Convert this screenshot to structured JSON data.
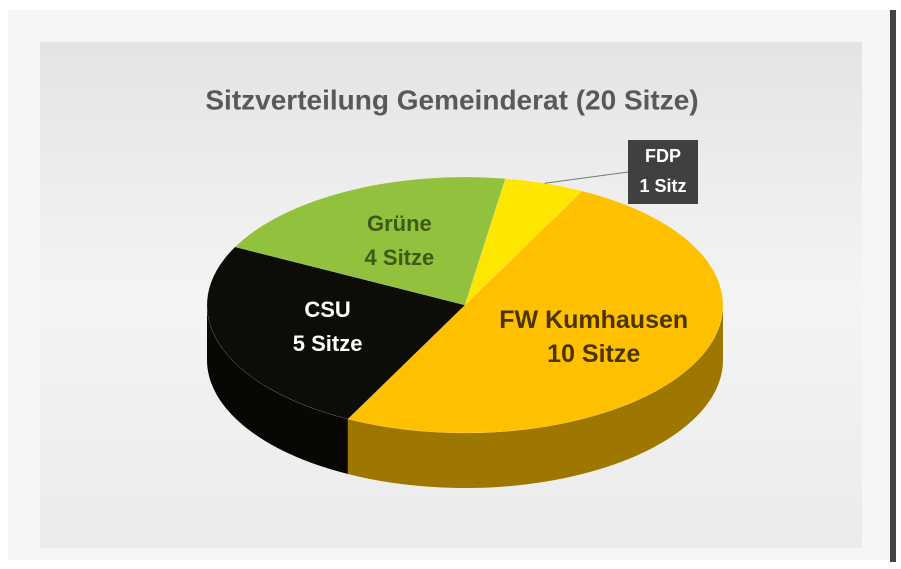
{
  "chart_data": {
    "type": "pie3d",
    "title": "Sitzverteilung Gemeinderat (20 Sitze)",
    "categories": [
      "FDP",
      "FW Kumhausen",
      "CSU",
      "Grüne"
    ],
    "values": [
      1,
      10,
      5,
      4
    ],
    "value_labels": [
      "1 Sitz",
      "10 Sitze",
      "5 Sitze",
      "4 Sitze"
    ],
    "colors": [
      "#ffe600",
      "#ffc000",
      "#0e0c06",
      "#92c13d"
    ],
    "label_colors": [
      "#ffffff",
      "#4a3400",
      "#ffffff",
      "#3f5a16"
    ]
  }
}
